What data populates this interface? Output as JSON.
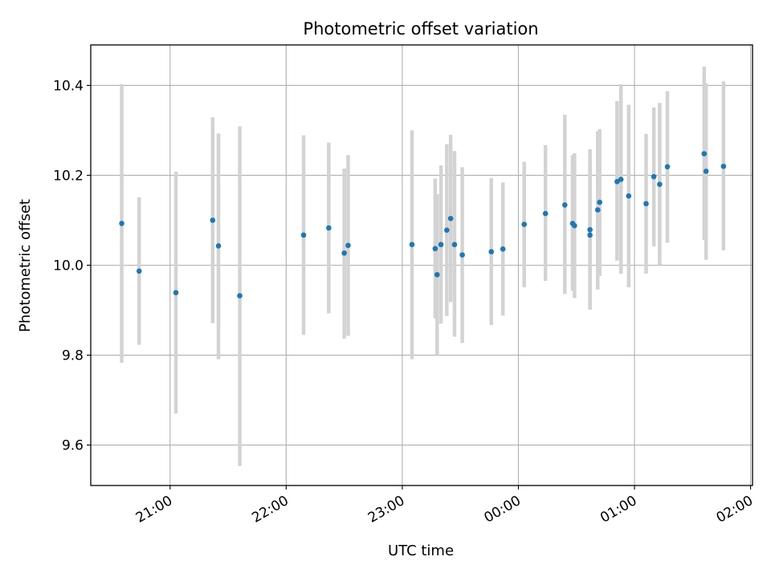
{
  "chart_data": {
    "type": "scatter",
    "title": "Photometric offset variation",
    "xlabel": "UTC time",
    "ylabel": "Photometric offset",
    "x_ticks": [
      "21:00",
      "22:00",
      "23:00",
      "00:00",
      "01:00",
      "02:00"
    ],
    "y_ticks": [
      "9.6",
      "9.8",
      "10.0",
      "10.2",
      "10.4"
    ],
    "xlim": [
      "20:19",
      "02:01"
    ],
    "ylim": [
      9.51,
      10.49
    ],
    "grid": true,
    "marker_color": "#1f77b4",
    "errorbar_color": "#d3d3d3",
    "series": [
      {
        "points": [
          {
            "t": "20:35",
            "y": 10.093,
            "lo": 9.783,
            "hi": 10.403
          },
          {
            "t": "20:44",
            "y": 9.987,
            "lo": 9.823,
            "hi": 10.151
          },
          {
            "t": "21:03",
            "y": 9.939,
            "lo": 9.67,
            "hi": 10.208
          },
          {
            "t": "21:22",
            "y": 10.1,
            "lo": 9.871,
            "hi": 10.329
          },
          {
            "t": "21:25",
            "y": 10.043,
            "lo": 9.791,
            "hi": 10.293
          },
          {
            "t": "21:36",
            "y": 9.932,
            "lo": 9.553,
            "hi": 10.309
          },
          {
            "t": "22:09",
            "y": 10.067,
            "lo": 9.845,
            "hi": 10.289
          },
          {
            "t": "22:22",
            "y": 10.083,
            "lo": 9.893,
            "hi": 10.273
          },
          {
            "t": "22:30",
            "y": 10.027,
            "lo": 9.837,
            "hi": 10.215
          },
          {
            "t": "22:32",
            "y": 10.044,
            "lo": 9.843,
            "hi": 10.245
          },
          {
            "t": "23:05",
            "y": 10.046,
            "lo": 9.791,
            "hi": 10.3
          },
          {
            "t": "23:17",
            "y": 10.037,
            "lo": 9.882,
            "hi": 10.193
          },
          {
            "t": "23:18",
            "y": 9.979,
            "lo": 9.8,
            "hi": 10.158
          },
          {
            "t": "23:20",
            "y": 10.046,
            "lo": 9.87,
            "hi": 10.222
          },
          {
            "t": "23:23",
            "y": 10.078,
            "lo": 9.887,
            "hi": 10.269
          },
          {
            "t": "23:25",
            "y": 10.104,
            "lo": 9.918,
            "hi": 10.29
          },
          {
            "t": "23:27",
            "y": 10.046,
            "lo": 9.841,
            "hi": 10.254
          },
          {
            "t": "23:31",
            "y": 10.023,
            "lo": 9.827,
            "hi": 10.218
          },
          {
            "t": "23:46",
            "y": 10.03,
            "lo": 9.867,
            "hi": 10.194
          },
          {
            "t": "23:52",
            "y": 10.036,
            "lo": 9.888,
            "hi": 10.184
          },
          {
            "t": "00:03",
            "y": 10.091,
            "lo": 9.951,
            "hi": 10.23
          },
          {
            "t": "00:14",
            "y": 10.115,
            "lo": 9.965,
            "hi": 10.267
          },
          {
            "t": "00:24",
            "y": 10.134,
            "lo": 9.936,
            "hi": 10.335
          },
          {
            "t": "00:28",
            "y": 10.093,
            "lo": 9.943,
            "hi": 10.245
          },
          {
            "t": "00:29",
            "y": 10.088,
            "lo": 9.927,
            "hi": 10.249
          },
          {
            "t": "00:37",
            "y": 10.067,
            "lo": 9.903,
            "hi": 10.233
          },
          {
            "t": "00:37",
            "y": 10.079,
            "lo": 9.901,
            "hi": 10.258
          },
          {
            "t": "00:41",
            "y": 10.123,
            "lo": 9.946,
            "hi": 10.298
          },
          {
            "t": "00:42",
            "y": 10.14,
            "lo": 9.976,
            "hi": 10.303
          },
          {
            "t": "00:51",
            "y": 10.186,
            "lo": 10.01,
            "hi": 10.365
          },
          {
            "t": "00:53",
            "y": 10.191,
            "lo": 9.981,
            "hi": 10.403
          },
          {
            "t": "00:57",
            "y": 10.154,
            "lo": 9.951,
            "hi": 10.357
          },
          {
            "t": "01:06",
            "y": 10.137,
            "lo": 9.981,
            "hi": 10.292
          },
          {
            "t": "01:10",
            "y": 10.197,
            "lo": 10.042,
            "hi": 10.351
          },
          {
            "t": "01:13",
            "y": 10.18,
            "lo": 10.0,
            "hi": 10.361
          },
          {
            "t": "01:17",
            "y": 10.219,
            "lo": 10.05,
            "hi": 10.387
          },
          {
            "t": "01:36",
            "y": 10.248,
            "lo": 10.056,
            "hi": 10.442
          },
          {
            "t": "01:37",
            "y": 10.209,
            "lo": 10.012,
            "hi": 10.405
          },
          {
            "t": "01:46",
            "y": 10.22,
            "lo": 10.033,
            "hi": 10.409
          }
        ]
      }
    ]
  }
}
